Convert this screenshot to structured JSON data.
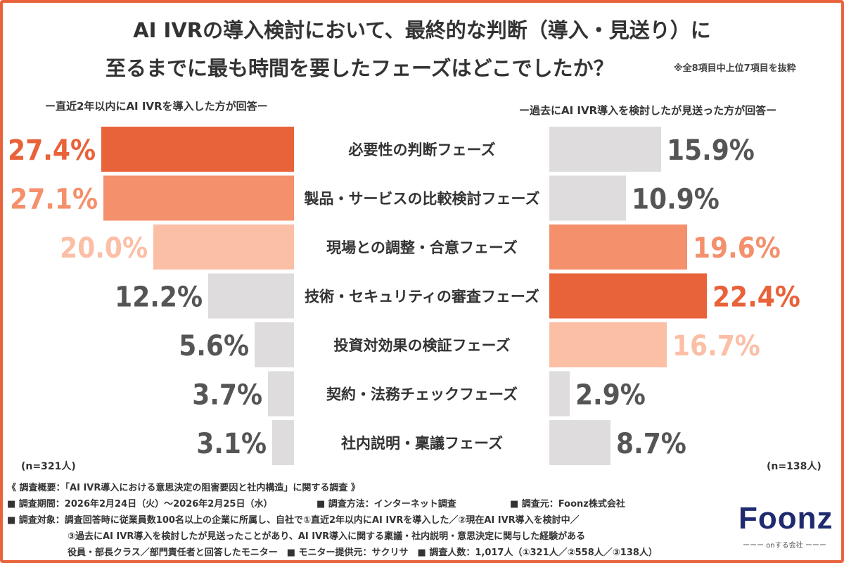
{
  "title": {
    "line1": "AI IVRの導入検討において、最終的な判断（導入・見送り）に",
    "line2": "至るまでに最も時間を要したフェーズはどこでしたか？",
    "note": "※全8項目中上位7項目を抜粋"
  },
  "chart_data": {
    "type": "bar",
    "categories": [
      "必要性の判断フェーズ",
      "製品・サービスの比較検討フェーズ",
      "現場との調整・合意フェーズ",
      "技術・セキュリティの審査フェーズ",
      "投資対効果の検証フェーズ",
      "契約・法務チェックフェーズ",
      "社内説明・稟議フェーズ"
    ],
    "series": [
      {
        "name": "ー直近2年以内にAI IVRを導入した方が回答ー",
        "n": "(n=321人)",
        "values": [
          27.4,
          27.1,
          20.0,
          12.2,
          5.6,
          3.7,
          3.1
        ],
        "labels": [
          "27.4%",
          "27.1%",
          "20.0%",
          "12.2%",
          "5.6%",
          "3.7%",
          "3.1%"
        ]
      },
      {
        "name": "ー過去にAI IVR導入を検討したが見送った方が回答ー",
        "n": "(n=138人)",
        "values": [
          15.9,
          10.9,
          19.6,
          22.4,
          16.7,
          2.9,
          8.7
        ],
        "labels": [
          "15.9%",
          "10.9%",
          "19.6%",
          "22.4%",
          "16.7%",
          "2.9%",
          "8.7%"
        ]
      }
    ],
    "colors": {
      "rank1": "#e8623a",
      "rank2": "#f4906c",
      "rank3": "#fbbfa6",
      "other": "#dedcdc",
      "other_text": "#555555"
    }
  },
  "footer": {
    "summary": "《 調査概要：「AI IVR導入における意思決定の阻害要因と社内構造」に関する調査 》",
    "period": "■ 調査期間：2026年2月24日（火）〜2026年2月25日（水）",
    "method": "■ 調査方法：インターネット調査",
    "source": "■ 調査元：Foonz株式会社",
    "target1": "■ 調査対象：調査回答時に従業員数100名以上の企業に所属し、自社で①直近2年以内にAI IVRを導入した／②現在AI IVR導入を検討中／",
    "target2": "③過去にAI IVR導入を検討したが見送ったことがあり、AI IVR導入に関する稟議・社内説明・意思決定に関与した経験がある",
    "target3": "役員・部長クラス／部門責任者と回答したモニター　■ モニター提供元：サクリサ　■ 調査人数：1,017人（①321人／②558人／③138人）"
  },
  "logo": {
    "word": "Foonz",
    "tagline": "ーーー onする会社 ーーー"
  }
}
